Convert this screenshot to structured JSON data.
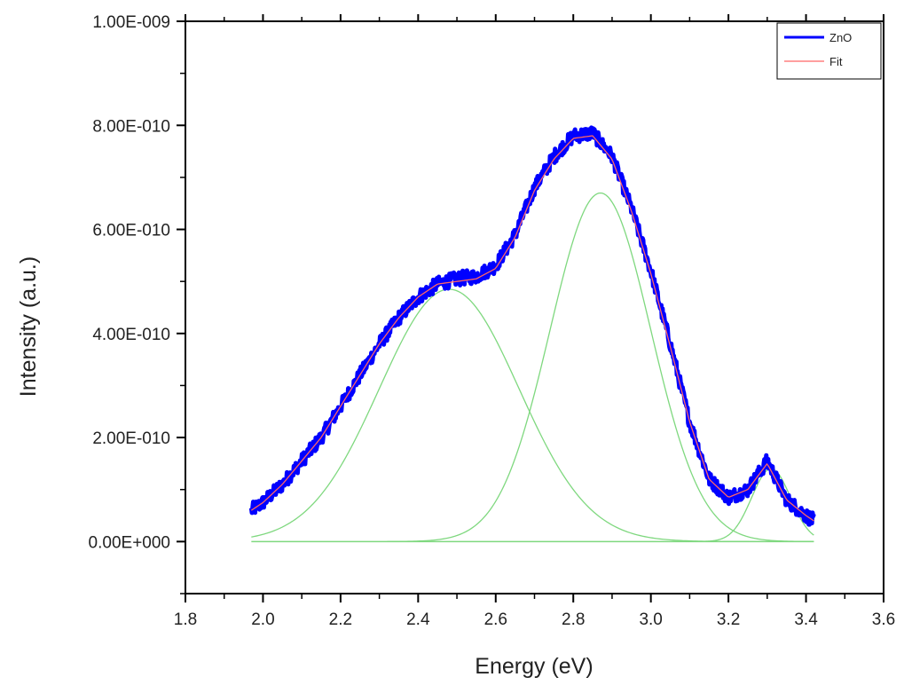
{
  "chart_data": {
    "type": "line",
    "title": "",
    "xlabel": "Energy (eV)",
    "ylabel": "Intensity (a.u.)",
    "xlim": [
      1.8,
      3.6
    ],
    "ylim": [
      -1e-10,
      1e-09
    ],
    "x_ticks": [
      "1.8",
      "2.0",
      "2.2",
      "2.4",
      "2.6",
      "2.8",
      "3.0",
      "3.2",
      "3.4",
      "3.6"
    ],
    "y_ticks": [
      "0.00E+000",
      "2.00E-010",
      "4.00E-010",
      "6.00E-010",
      "8.00E-010",
      "1.00E-009"
    ],
    "y_tick_values": [
      0,
      2e-10,
      4e-10,
      6e-10,
      8e-10,
      1e-09
    ],
    "grid": false,
    "legend_position": "top-right",
    "series": [
      {
        "name": "ZnO",
        "color": "#0000ff",
        "style": "noisy-thick",
        "x": [
          1.97,
          2.0,
          2.05,
          2.1,
          2.15,
          2.2,
          2.25,
          2.3,
          2.35,
          2.4,
          2.45,
          2.5,
          2.55,
          2.6,
          2.65,
          2.7,
          2.75,
          2.8,
          2.85,
          2.9,
          2.95,
          3.0,
          3.05,
          3.1,
          3.15,
          3.2,
          3.25,
          3.3,
          3.35,
          3.4,
          3.42
        ],
        "values": [
          6e-11,
          7.5e-11,
          1.1e-10,
          1.55e-10,
          2e-10,
          2.6e-10,
          3.2e-10,
          3.8e-10,
          4.3e-10,
          4.7e-10,
          4.95e-10,
          5.05e-10,
          5.1e-10,
          5.3e-10,
          5.9e-10,
          6.8e-10,
          7.4e-10,
          7.8e-10,
          7.85e-10,
          7.4e-10,
          6.4e-10,
          5.2e-10,
          3.8e-10,
          2.3e-10,
          1.2e-10,
          8.5e-11,
          1e-10,
          1.55e-10,
          8e-11,
          5e-11,
          4e-11
        ]
      },
      {
        "name": "Fit",
        "color": "#ff6666",
        "style": "line",
        "x": [
          1.97,
          2.0,
          2.05,
          2.1,
          2.15,
          2.2,
          2.25,
          2.3,
          2.35,
          2.4,
          2.45,
          2.5,
          2.55,
          2.6,
          2.65,
          2.7,
          2.75,
          2.8,
          2.85,
          2.9,
          2.95,
          3.0,
          3.05,
          3.1,
          3.15,
          3.2,
          3.25,
          3.3,
          3.35,
          3.4,
          3.42
        ],
        "values": [
          6e-11,
          7.5e-11,
          1.1e-10,
          1.55e-10,
          2e-10,
          2.6e-10,
          3.2e-10,
          3.8e-10,
          4.3e-10,
          4.7e-10,
          4.95e-10,
          5e-10,
          5.05e-10,
          5.25e-10,
          5.85e-10,
          6.75e-10,
          7.35e-10,
          7.75e-10,
          7.8e-10,
          7.35e-10,
          6.35e-10,
          5.15e-10,
          3.75e-10,
          2.3e-10,
          1.2e-10,
          8.5e-11,
          1e-10,
          1.5e-10,
          8e-11,
          5e-11,
          4e-11
        ]
      }
    ],
    "components": [
      {
        "color": "#7fd87f",
        "center": 2.48,
        "amplitude": 4.85e-10,
        "width": 0.18,
        "xrange": [
          1.97,
          3.42
        ]
      },
      {
        "color": "#7fd87f",
        "center": 2.87,
        "amplitude": 6.7e-10,
        "width": 0.13,
        "xrange": [
          2.32,
          3.42
        ]
      },
      {
        "color": "#7fd87f",
        "center": 3.31,
        "amplitude": 1.4e-10,
        "width": 0.05,
        "xrange": [
          3.1,
          3.42
        ]
      }
    ],
    "baseline": {
      "color": "#7fd87f",
      "value": 0,
      "xrange": [
        1.97,
        3.42
      ]
    }
  }
}
